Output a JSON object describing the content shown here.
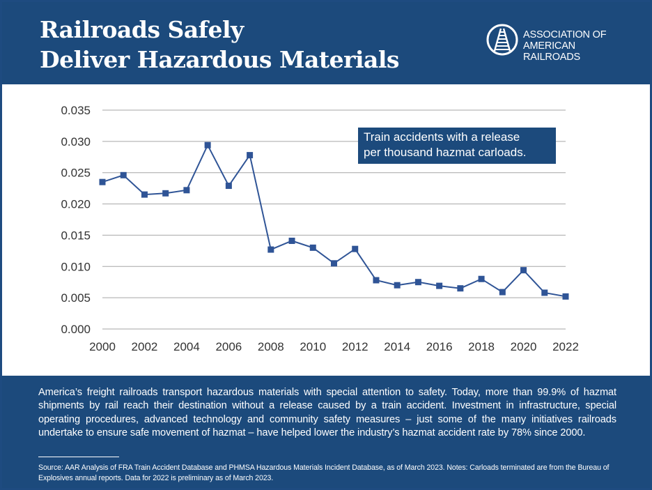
{
  "header": {
    "title_line1": "Railroads Safely",
    "title_line2": "Deliver Hazardous Materials",
    "logo_line1": "ASSOCIATION OF",
    "logo_line2": "AMERICAN RAILROADS"
  },
  "colors": {
    "brand": "#1c4a7c",
    "series": "#2f5496",
    "grid": "#a6a6a6",
    "text": "#333333"
  },
  "chart_data": {
    "type": "line",
    "title": "",
    "xlabel": "",
    "ylabel": "",
    "legend": "Train accidents with a release per thousand hazmat carloads.",
    "legend_line1": "Train accidents with a release",
    "legend_line2": "per thousand hazmat carloads.",
    "legend_position": "top-right",
    "xlim": [
      2000,
      2022
    ],
    "ylim": [
      0,
      0.035
    ],
    "grid": true,
    "x_ticks": [
      "2000",
      "2002",
      "2004",
      "2006",
      "2008",
      "2010",
      "2012",
      "2014",
      "2016",
      "2018",
      "2020",
      "2022"
    ],
    "y_ticks": [
      "0.000",
      "0.005",
      "0.010",
      "0.015",
      "0.020",
      "0.025",
      "0.030",
      "0.035"
    ],
    "series": [
      {
        "name": "Train accidents with a release per thousand hazmat carloads",
        "x": [
          2000,
          2001,
          2002,
          2003,
          2004,
          2005,
          2006,
          2007,
          2008,
          2009,
          2010,
          2011,
          2012,
          2013,
          2014,
          2015,
          2016,
          2017,
          2018,
          2019,
          2020,
          2021,
          2022
        ],
        "values": [
          0.0235,
          0.0246,
          0.0215,
          0.0217,
          0.0222,
          0.0294,
          0.0229,
          0.0278,
          0.0127,
          0.0141,
          0.013,
          0.0105,
          0.0128,
          0.0078,
          0.007,
          0.0075,
          0.0069,
          0.0065,
          0.008,
          0.0059,
          0.0094,
          0.0058,
          0.0052
        ]
      }
    ]
  },
  "description": "America’s freight railroads transport hazardous materials with special attention to safety. Today, more than 99.9% of hazmat shipments by rail reach their destination without a release caused by a train accident. Investment in infrastructure, special operating procedures, advanced technology and community safety measures – just some of the many initiatives railroads undertake to ensure safe movement of hazmat – have helped lower the industry’s hazmat accident rate by 78% since 2000.",
  "source": "Source: AAR Analysis of FRA Train Accident Database and PHMSA Hazardous Materials Incident Database, as of March 2023. Notes: Carloads terminated are from the Bureau of Explosives annual reports. Data for 2022 is preliminary as of March 2023."
}
